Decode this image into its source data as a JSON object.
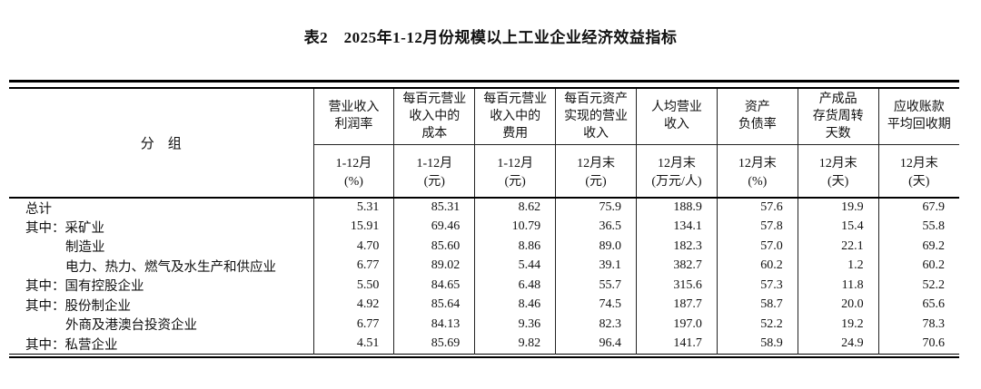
{
  "title": "表2　2025年1-12月份规模以上工业企业经济效益指标",
  "table": {
    "group_header": "分　组",
    "columns": [
      {
        "name": "营业收入\n利润率",
        "period": "1-12月",
        "unit": "(%)"
      },
      {
        "name": "每百元营业\n收入中的\n成本",
        "period": "1-12月",
        "unit": "(元)"
      },
      {
        "name": "每百元营业\n收入中的\n费用",
        "period": "1-12月",
        "unit": "(元)"
      },
      {
        "name": "每百元资产\n实现的营业\n收入",
        "period": "12月末",
        "unit": "(元)"
      },
      {
        "name": "人均营业\n收入",
        "period": "12月末",
        "unit": "(万元/人)"
      },
      {
        "name": "资产\n负债率",
        "period": "12月末",
        "unit": "(%)"
      },
      {
        "name": "产成品\n存货周转\n天数",
        "period": "12月末",
        "unit": "(天)"
      },
      {
        "name": "应收账款\n平均回收期",
        "period": "12月末",
        "unit": "(天)"
      }
    ],
    "rows": [
      {
        "prefix": "",
        "label": "总计",
        "indent": 0,
        "values": [
          "5.31",
          "85.31",
          "8.62",
          "75.9",
          "188.9",
          "57.6",
          "19.9",
          "67.9"
        ]
      },
      {
        "prefix": "其中：",
        "label": "采矿业",
        "indent": 0,
        "values": [
          "15.91",
          "69.46",
          "10.79",
          "36.5",
          "134.1",
          "57.8",
          "15.4",
          "55.8"
        ]
      },
      {
        "prefix": "",
        "label": "制造业",
        "indent": 1,
        "values": [
          "4.70",
          "85.60",
          "8.86",
          "89.0",
          "182.3",
          "57.0",
          "22.1",
          "69.2"
        ]
      },
      {
        "prefix": "",
        "label": "电力、热力、燃气及水生产和供应业",
        "indent": 1,
        "values": [
          "6.77",
          "89.02",
          "5.44",
          "39.1",
          "382.7",
          "60.2",
          "1.2",
          "60.2"
        ]
      },
      {
        "prefix": "其中：",
        "label": "国有控股企业",
        "indent": 0,
        "values": [
          "5.50",
          "84.65",
          "6.48",
          "55.7",
          "315.6",
          "57.3",
          "11.8",
          "52.2"
        ]
      },
      {
        "prefix": "其中：",
        "label": "股份制企业",
        "indent": 0,
        "values": [
          "4.92",
          "85.64",
          "8.46",
          "74.5",
          "187.7",
          "58.7",
          "20.0",
          "65.6"
        ]
      },
      {
        "prefix": "",
        "label": "外商及港澳台投资企业",
        "indent": 1,
        "values": [
          "6.77",
          "84.13",
          "9.36",
          "82.3",
          "197.0",
          "52.2",
          "19.2",
          "78.3"
        ]
      },
      {
        "prefix": "其中：",
        "label": "私营企业",
        "indent": 0,
        "values": [
          "4.51",
          "85.69",
          "9.82",
          "96.4",
          "141.7",
          "58.9",
          "24.9",
          "70.6"
        ]
      }
    ]
  }
}
